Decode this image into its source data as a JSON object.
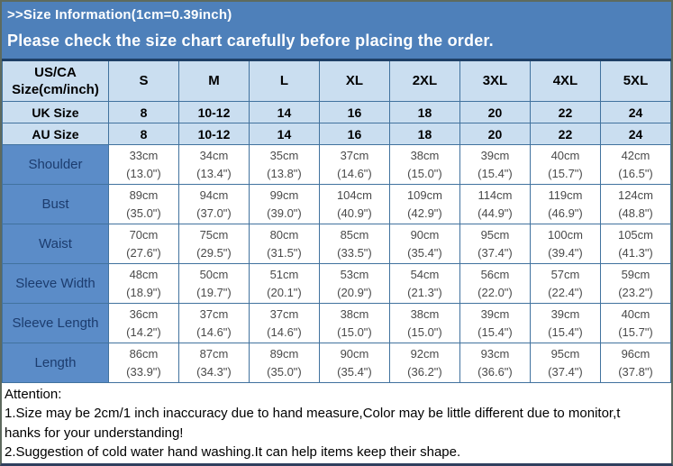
{
  "banner": {
    "title": ">>Size Information(1cm=0.39inch)",
    "subtitle": "Please check the size chart carefully before placing the order."
  },
  "colors": {
    "banner_bg": "#4e80ba",
    "header_cell_bg": "#cadef0",
    "label_cell_bg": "#5b8cc8",
    "label_text": "#1c3c6e",
    "data_text": "#4a4a4a",
    "grid_border": "#41729e"
  },
  "size_chart": {
    "corner_line1": "US/CA",
    "corner_line2": "Size(cm/inch)",
    "size_headers": [
      "S",
      "M",
      "L",
      "XL",
      "2XL",
      "3XL",
      "4XL",
      "5XL"
    ],
    "uk_row": {
      "label": "UK Size",
      "values": [
        "8",
        "10-12",
        "14",
        "16",
        "18",
        "20",
        "22",
        "24"
      ]
    },
    "au_row": {
      "label": "AU Size",
      "values": [
        "8",
        "10-12",
        "14",
        "16",
        "18",
        "20",
        "22",
        "24"
      ]
    },
    "measurements": [
      {
        "label": "Shoulder",
        "cm": [
          "33cm",
          "34cm",
          "35cm",
          "37cm",
          "38cm",
          "39cm",
          "40cm",
          "42cm"
        ],
        "inch": [
          "(13.0\")",
          "(13.4\")",
          "(13.8\")",
          "(14.6\")",
          "(15.0\")",
          "(15.4\")",
          "(15.7\")",
          "(16.5\")"
        ]
      },
      {
        "label": "Bust",
        "cm": [
          "89cm",
          "94cm",
          "99cm",
          "104cm",
          "109cm",
          "114cm",
          "119cm",
          "124cm"
        ],
        "inch": [
          "(35.0\")",
          "(37.0\")",
          "(39.0\")",
          "(40.9\")",
          "(42.9\")",
          "(44.9\")",
          "(46.9\")",
          "(48.8\")"
        ]
      },
      {
        "label": "Waist",
        "cm": [
          "70cm",
          "75cm",
          "80cm",
          "85cm",
          "90cm",
          "95cm",
          "100cm",
          "105cm"
        ],
        "inch": [
          "(27.6\")",
          "(29.5\")",
          "(31.5\")",
          "(33.5\")",
          "(35.4\")",
          "(37.4\")",
          "(39.4\")",
          "(41.3\")"
        ]
      },
      {
        "label": "Sleeve Width",
        "cm": [
          "48cm",
          "50cm",
          "51cm",
          "53cm",
          "54cm",
          "56cm",
          "57cm",
          "59cm"
        ],
        "inch": [
          "(18.9\")",
          "(19.7\")",
          "(20.1\")",
          "(20.9\")",
          "(21.3\")",
          "(22.0\")",
          "(22.4\")",
          "(23.2\")"
        ]
      },
      {
        "label": "Sleeve Length",
        "cm": [
          "36cm",
          "37cm",
          "37cm",
          "38cm",
          "38cm",
          "39cm",
          "39cm",
          "40cm"
        ],
        "inch": [
          "(14.2\")",
          "(14.6\")",
          "(14.6\")",
          "(15.0\")",
          "(15.0\")",
          "(15.4\")",
          "(15.4\")",
          "(15.7\")"
        ]
      },
      {
        "label": "Length",
        "cm": [
          "86cm",
          "87cm",
          "89cm",
          "90cm",
          "92cm",
          "93cm",
          "95cm",
          "96cm"
        ],
        "inch": [
          "(33.9\")",
          "(34.3\")",
          "(35.0\")",
          "(35.4\")",
          "(36.2\")",
          "(36.6\")",
          "(37.4\")",
          "(37.8\")"
        ]
      }
    ]
  },
  "attention": {
    "lines": [
      "Attention:",
      "1.Size may be 2cm/1 inch inaccuracy due to hand measure,Color may be little different due to monitor,t",
      "hanks for your understanding!",
      "2.Suggestion of cold water hand washing.It can help items keep their shape."
    ]
  }
}
